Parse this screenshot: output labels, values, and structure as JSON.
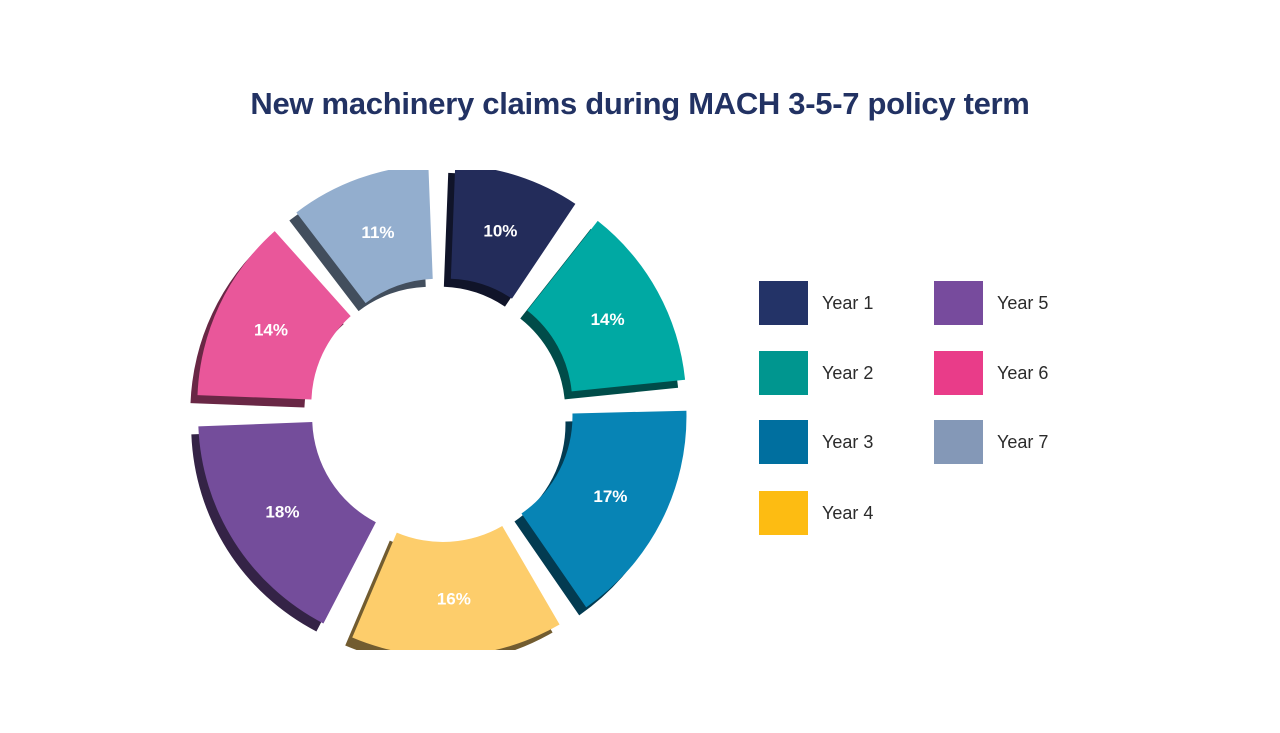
{
  "chart_data": {
    "type": "pie",
    "title": "New machinery claims during MACH 3-5-7 policy term",
    "categories": [
      "Year 1",
      "Year 2",
      "Year 3",
      "Year 4",
      "Year 5",
      "Year 6",
      "Year 7"
    ],
    "values": [
      10,
      14,
      17,
      16,
      18,
      14,
      11
    ],
    "labels": [
      "10%",
      "14%",
      "17%",
      "16%",
      "18%",
      "14%",
      "11%"
    ],
    "colors": [
      "#232c5a",
      "#00a9a3",
      "#0784b5",
      "#fdcd6b",
      "#744d9b",
      "#e9579a",
      "#93aece"
    ],
    "legend_colors": [
      "#233367",
      "#00968f",
      "#006f9f",
      "#fdbc12",
      "#774b9d",
      "#e93c89",
      "#8498b7"
    ],
    "legend": {
      "placement": "right",
      "columns": 2
    },
    "style": "donut"
  }
}
